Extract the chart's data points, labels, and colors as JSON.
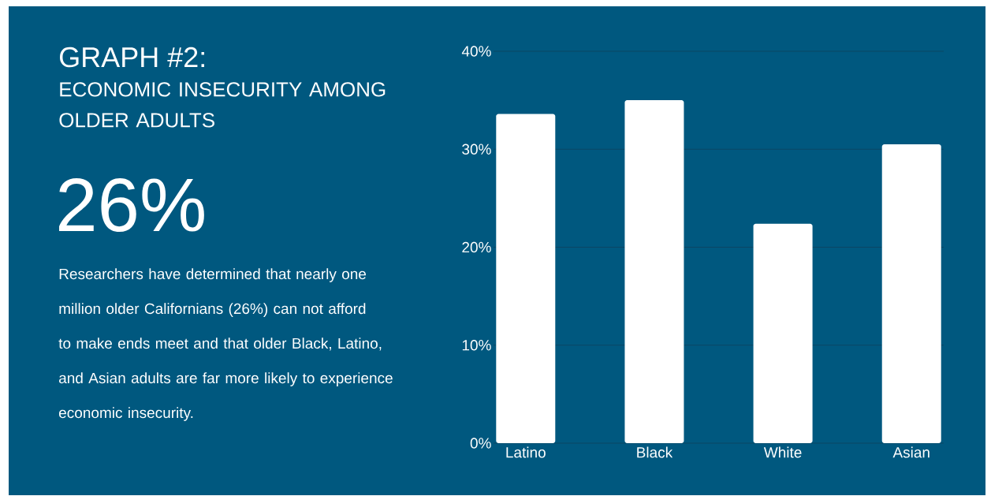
{
  "chart_data": {
    "type": "bar",
    "title": "GRAPH #2:",
    "subtitle": "ECONOMIC INSECURITY AMONG OLDER ADULTS",
    "annotations": [
      "26%",
      "Researchers have determined that nearly one million older Californians (26%) can not afford to make ends meet and that older Black, Latino, and Asian adults are far more likely to experience economic insecurity."
    ],
    "categories": [
      "Latino",
      "Black",
      "White",
      "Asian"
    ],
    "values": [
      33.6,
      35.0,
      22.4,
      30.5
    ],
    "color": "#ffffff",
    "ylim": [
      0,
      40
    ],
    "yticks": [
      {
        "value": 0,
        "label": "0%"
      },
      {
        "value": 10,
        "label": "10%"
      },
      {
        "value": 20,
        "label": "20%"
      },
      {
        "value": 30,
        "label": "30%"
      },
      {
        "value": 40,
        "label": "40%"
      }
    ],
    "grid": "y"
  }
}
